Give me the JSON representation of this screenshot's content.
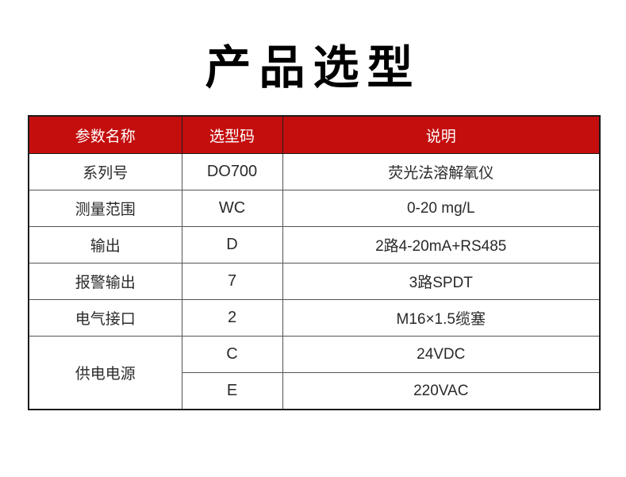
{
  "title": "产品选型",
  "colors": {
    "page_bg": "#ffffff",
    "title_text": "#000000",
    "header_bg": "#C40E0E",
    "header_text": "#ffffff",
    "body_text": "#2a2a2a",
    "border_outer": "#1c1c1c",
    "border_inner": "#545454"
  },
  "table": {
    "headers": {
      "param": "参数名称",
      "code": "选型码",
      "desc": "说明"
    },
    "rows": [
      {
        "param": "系列号",
        "code": "DO700",
        "desc": "荧光法溶解氧仪"
      },
      {
        "param": "测量范围",
        "code": "WC",
        "desc": "0-20 mg/L"
      },
      {
        "param": "输出",
        "code": "D",
        "desc": "2路4-20mA+RS485"
      },
      {
        "param": "报警输出",
        "code": "7",
        "desc": "3路SPDT"
      },
      {
        "param": "电气接口",
        "code": "2",
        "desc": "M16×1.5缆塞"
      }
    ],
    "merged_row": {
      "param": "供电电源",
      "options": [
        {
          "code": "C",
          "desc": "24VDC"
        },
        {
          "code": "E",
          "desc": "220VAC"
        }
      ]
    }
  }
}
